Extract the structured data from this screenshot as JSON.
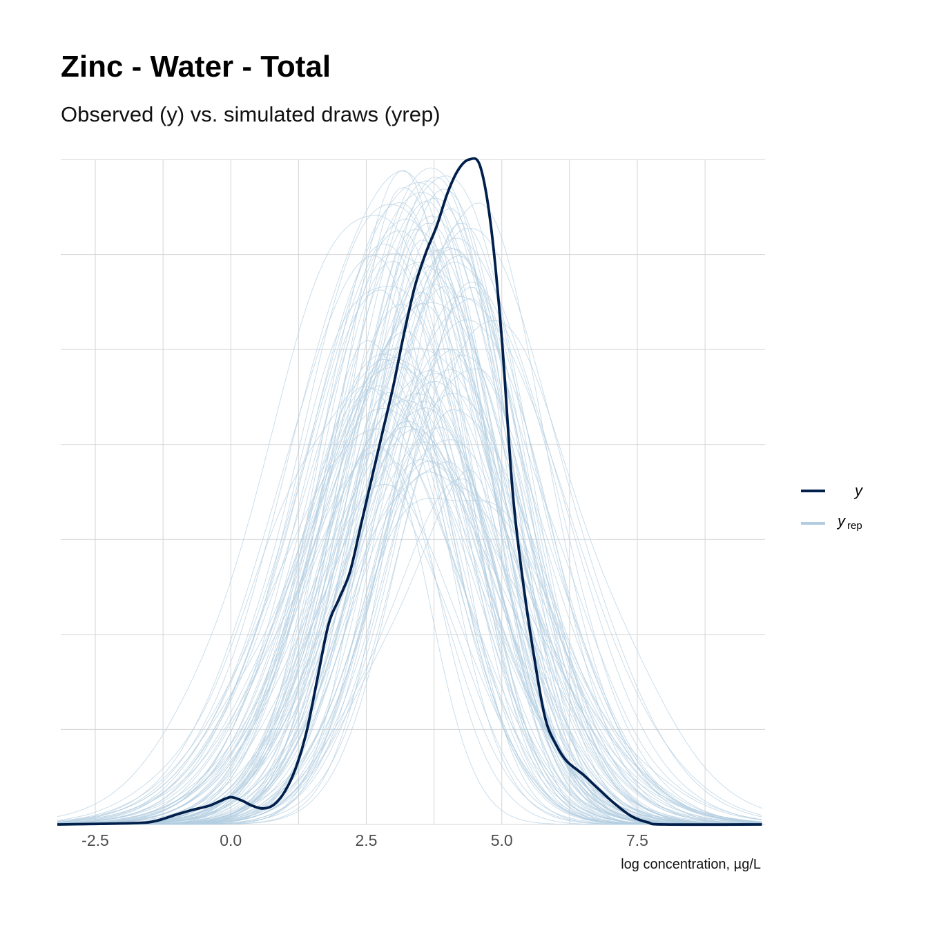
{
  "chart_data": {
    "type": "line",
    "title": "Zinc - Water - Total",
    "subtitle": "Observed (y) vs. simulated draws (yrep)",
    "xlabel": "log concentration, µg/L",
    "ylabel": "",
    "xlim": [
      -3.2,
      9.8
    ],
    "ylim": [
      0,
      1
    ],
    "x_ticks": [
      -2.5,
      0.0,
      2.5,
      5.0,
      7.5
    ],
    "x_tick_labels": [
      "-2.5",
      "0.0",
      "2.5",
      "5.0",
      "7.5"
    ],
    "grid": true,
    "y_tick_labels_shown": false,
    "legend_position": "right",
    "legend": [
      {
        "label": "y",
        "color": "#011f4b"
      },
      {
        "label": "y",
        "subscript": "rep",
        "color": "#b3cde0"
      }
    ],
    "series": [
      {
        "name": "y",
        "color": "#011f4b",
        "x": [
          -3.2,
          -1.8,
          -1.4,
          -1.0,
          -0.7,
          -0.4,
          -0.2,
          0.0,
          0.2,
          0.4,
          0.6,
          0.8,
          1.0,
          1.2,
          1.4,
          1.6,
          1.8,
          2.0,
          2.2,
          2.4,
          2.6,
          2.8,
          3.0,
          3.2,
          3.4,
          3.6,
          3.8,
          4.0,
          4.2,
          4.4,
          4.6,
          4.8,
          5.0,
          5.2,
          5.4,
          5.6,
          5.8,
          6.0,
          6.2,
          6.5,
          6.8,
          7.1,
          7.4,
          7.7,
          8.0,
          9.8
        ],
        "y": [
          0.0,
          0.002,
          0.005,
          0.015,
          0.022,
          0.028,
          0.035,
          0.041,
          0.036,
          0.028,
          0.024,
          0.03,
          0.05,
          0.085,
          0.14,
          0.22,
          0.3,
          0.34,
          0.38,
          0.45,
          0.52,
          0.59,
          0.66,
          0.74,
          0.81,
          0.86,
          0.9,
          0.95,
          0.985,
          1.0,
          0.99,
          0.9,
          0.73,
          0.5,
          0.36,
          0.25,
          0.16,
          0.12,
          0.095,
          0.075,
          0.052,
          0.03,
          0.012,
          0.003,
          0.0,
          0.0
        ]
      }
    ],
    "yrep_draws": {
      "count": 100,
      "color": "#b3cde0",
      "typical_peak_x_range": [
        2.6,
        4.6
      ],
      "typical_peak_y_range": [
        0.5,
        0.99
      ],
      "typical_sd_range": [
        1.1,
        1.75
      ]
    }
  }
}
